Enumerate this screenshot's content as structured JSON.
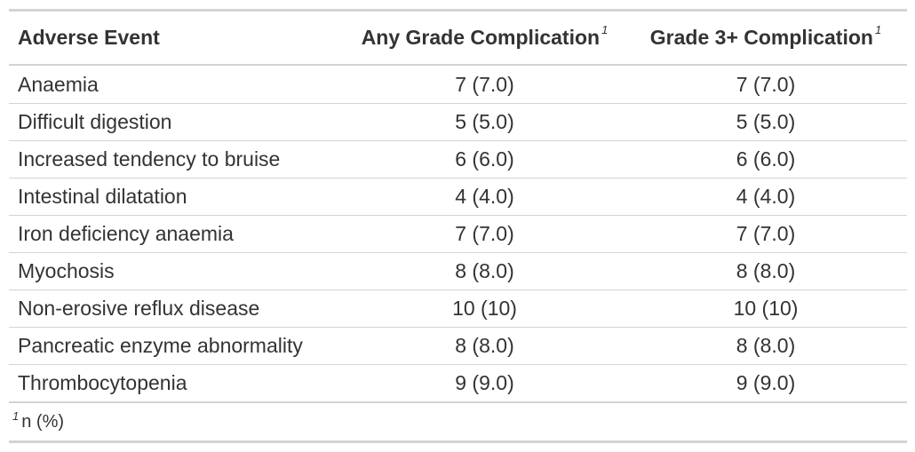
{
  "table": {
    "headers": [
      {
        "label": "Adverse Event",
        "footnote_mark": ""
      },
      {
        "label": "Any Grade Complication",
        "footnote_mark": "1"
      },
      {
        "label": "Grade 3+ Complication",
        "footnote_mark": "1"
      }
    ],
    "rows": [
      {
        "event": "Anaemia",
        "any_grade": "7 (7.0)",
        "grade3plus": "7 (7.0)"
      },
      {
        "event": "Difficult digestion",
        "any_grade": "5 (5.0)",
        "grade3plus": "5 (5.0)"
      },
      {
        "event": "Increased tendency to bruise",
        "any_grade": "6 (6.0)",
        "grade3plus": "6 (6.0)"
      },
      {
        "event": "Intestinal dilatation",
        "any_grade": "4 (4.0)",
        "grade3plus": "4 (4.0)"
      },
      {
        "event": "Iron deficiency anaemia",
        "any_grade": "7 (7.0)",
        "grade3plus": "7 (7.0)"
      },
      {
        "event": "Myochosis",
        "any_grade": "8 (8.0)",
        "grade3plus": "8 (8.0)"
      },
      {
        "event": "Non-erosive reflux disease",
        "any_grade": "10 (10)",
        "grade3plus": "10 (10)"
      },
      {
        "event": "Pancreatic enzyme abnormality",
        "any_grade": "8 (8.0)",
        "grade3plus": "8 (8.0)"
      },
      {
        "event": "Thrombocytopenia",
        "any_grade": "9 (9.0)",
        "grade3plus": "9 (9.0)"
      }
    ],
    "footnote": {
      "mark": "1",
      "text": "n (%)"
    }
  }
}
